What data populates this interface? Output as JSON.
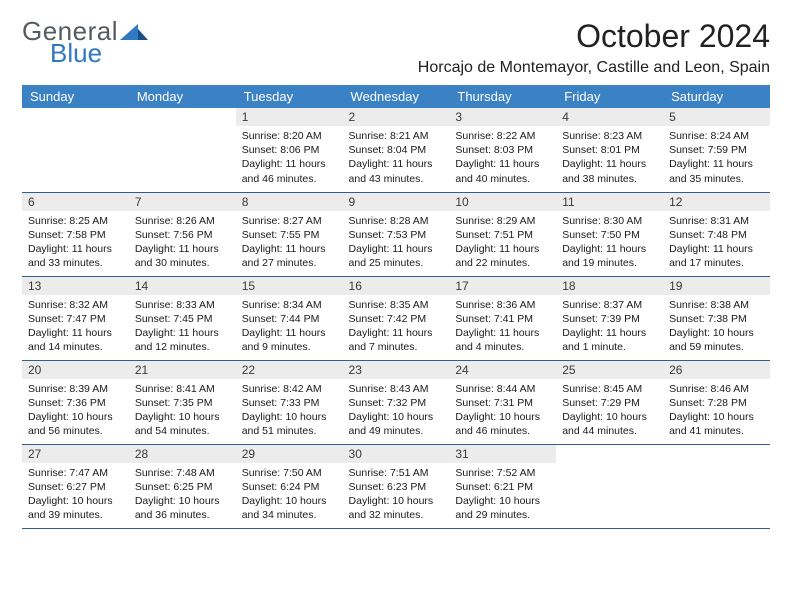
{
  "logo": {
    "word1": "General",
    "word2": "Blue"
  },
  "title": "October 2024",
  "location": "Horcajo de Montemayor, Castille and Leon, Spain",
  "colors": {
    "header_bg": "#3b82c4",
    "header_fg": "#ffffff",
    "daynum_bg": "#ececec",
    "row_border": "#2f5f8f",
    "logo_gray": "#555b5f",
    "logo_blue": "#2f78c2"
  },
  "day_headers": [
    "Sunday",
    "Monday",
    "Tuesday",
    "Wednesday",
    "Thursday",
    "Friday",
    "Saturday"
  ],
  "weeks": [
    [
      null,
      null,
      {
        "n": "1",
        "sr": "8:20 AM",
        "ss": "8:06 PM",
        "dl": "11 hours and 46 minutes."
      },
      {
        "n": "2",
        "sr": "8:21 AM",
        "ss": "8:04 PM",
        "dl": "11 hours and 43 minutes."
      },
      {
        "n": "3",
        "sr": "8:22 AM",
        "ss": "8:03 PM",
        "dl": "11 hours and 40 minutes."
      },
      {
        "n": "4",
        "sr": "8:23 AM",
        "ss": "8:01 PM",
        "dl": "11 hours and 38 minutes."
      },
      {
        "n": "5",
        "sr": "8:24 AM",
        "ss": "7:59 PM",
        "dl": "11 hours and 35 minutes."
      }
    ],
    [
      {
        "n": "6",
        "sr": "8:25 AM",
        "ss": "7:58 PM",
        "dl": "11 hours and 33 minutes."
      },
      {
        "n": "7",
        "sr": "8:26 AM",
        "ss": "7:56 PM",
        "dl": "11 hours and 30 minutes."
      },
      {
        "n": "8",
        "sr": "8:27 AM",
        "ss": "7:55 PM",
        "dl": "11 hours and 27 minutes."
      },
      {
        "n": "9",
        "sr": "8:28 AM",
        "ss": "7:53 PM",
        "dl": "11 hours and 25 minutes."
      },
      {
        "n": "10",
        "sr": "8:29 AM",
        "ss": "7:51 PM",
        "dl": "11 hours and 22 minutes."
      },
      {
        "n": "11",
        "sr": "8:30 AM",
        "ss": "7:50 PM",
        "dl": "11 hours and 19 minutes."
      },
      {
        "n": "12",
        "sr": "8:31 AM",
        "ss": "7:48 PM",
        "dl": "11 hours and 17 minutes."
      }
    ],
    [
      {
        "n": "13",
        "sr": "8:32 AM",
        "ss": "7:47 PM",
        "dl": "11 hours and 14 minutes."
      },
      {
        "n": "14",
        "sr": "8:33 AM",
        "ss": "7:45 PM",
        "dl": "11 hours and 12 minutes."
      },
      {
        "n": "15",
        "sr": "8:34 AM",
        "ss": "7:44 PM",
        "dl": "11 hours and 9 minutes."
      },
      {
        "n": "16",
        "sr": "8:35 AM",
        "ss": "7:42 PM",
        "dl": "11 hours and 7 minutes."
      },
      {
        "n": "17",
        "sr": "8:36 AM",
        "ss": "7:41 PM",
        "dl": "11 hours and 4 minutes."
      },
      {
        "n": "18",
        "sr": "8:37 AM",
        "ss": "7:39 PM",
        "dl": "11 hours and 1 minute."
      },
      {
        "n": "19",
        "sr": "8:38 AM",
        "ss": "7:38 PM",
        "dl": "10 hours and 59 minutes."
      }
    ],
    [
      {
        "n": "20",
        "sr": "8:39 AM",
        "ss": "7:36 PM",
        "dl": "10 hours and 56 minutes."
      },
      {
        "n": "21",
        "sr": "8:41 AM",
        "ss": "7:35 PM",
        "dl": "10 hours and 54 minutes."
      },
      {
        "n": "22",
        "sr": "8:42 AM",
        "ss": "7:33 PM",
        "dl": "10 hours and 51 minutes."
      },
      {
        "n": "23",
        "sr": "8:43 AM",
        "ss": "7:32 PM",
        "dl": "10 hours and 49 minutes."
      },
      {
        "n": "24",
        "sr": "8:44 AM",
        "ss": "7:31 PM",
        "dl": "10 hours and 46 minutes."
      },
      {
        "n": "25",
        "sr": "8:45 AM",
        "ss": "7:29 PM",
        "dl": "10 hours and 44 minutes."
      },
      {
        "n": "26",
        "sr": "8:46 AM",
        "ss": "7:28 PM",
        "dl": "10 hours and 41 minutes."
      }
    ],
    [
      {
        "n": "27",
        "sr": "7:47 AM",
        "ss": "6:27 PM",
        "dl": "10 hours and 39 minutes."
      },
      {
        "n": "28",
        "sr": "7:48 AM",
        "ss": "6:25 PM",
        "dl": "10 hours and 36 minutes."
      },
      {
        "n": "29",
        "sr": "7:50 AM",
        "ss": "6:24 PM",
        "dl": "10 hours and 34 minutes."
      },
      {
        "n": "30",
        "sr": "7:51 AM",
        "ss": "6:23 PM",
        "dl": "10 hours and 32 minutes."
      },
      {
        "n": "31",
        "sr": "7:52 AM",
        "ss": "6:21 PM",
        "dl": "10 hours and 29 minutes."
      },
      null,
      null
    ]
  ],
  "labels": {
    "sunrise": "Sunrise:",
    "sunset": "Sunset:",
    "daylight": "Daylight:"
  }
}
